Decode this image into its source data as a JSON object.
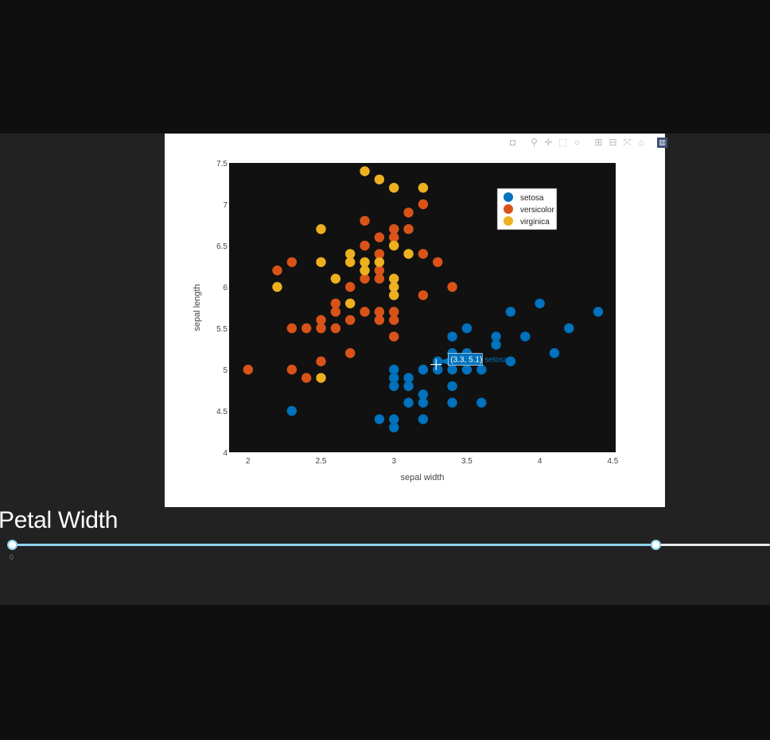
{
  "chart_data": {
    "type": "scatter",
    "title": "",
    "xlabel": "sepal width",
    "ylabel": "sepal length",
    "xlim": [
      1.87,
      4.52
    ],
    "ylim": [
      4.0,
      7.5
    ],
    "xticks": [
      "2",
      "2.5",
      "3",
      "3.5",
      "4",
      "4.5"
    ],
    "yticks": [
      "4",
      "4.5",
      "5",
      "5.5",
      "6",
      "6.5",
      "7",
      "7.5"
    ],
    "grid": false,
    "legend_position": "top-right",
    "plot_background": "#111111",
    "series": [
      {
        "name": "setosa",
        "color": "#0072bd",
        "points": [
          [
            3.0,
            5.0
          ],
          [
            3.0,
            4.9
          ],
          [
            3.0,
            4.8
          ],
          [
            3.0,
            4.4
          ],
          [
            3.0,
            4.3
          ],
          [
            2.9,
            4.4
          ],
          [
            3.1,
            4.9
          ],
          [
            3.1,
            4.8
          ],
          [
            3.1,
            4.6
          ],
          [
            3.2,
            5.0
          ],
          [
            3.2,
            4.7
          ],
          [
            3.2,
            4.6
          ],
          [
            3.2,
            4.4
          ],
          [
            3.3,
            5.1
          ],
          [
            3.3,
            5.0
          ],
          [
            3.4,
            5.4
          ],
          [
            3.4,
            5.2
          ],
          [
            3.4,
            5.1
          ],
          [
            3.4,
            5.0
          ],
          [
            3.4,
            4.8
          ],
          [
            3.4,
            4.6
          ],
          [
            3.5,
            5.5
          ],
          [
            3.5,
            5.2
          ],
          [
            3.5,
            5.1
          ],
          [
            3.5,
            5.0
          ],
          [
            3.6,
            5.0
          ],
          [
            3.6,
            4.6
          ],
          [
            3.7,
            5.4
          ],
          [
            3.7,
            5.3
          ],
          [
            3.8,
            5.7
          ],
          [
            3.8,
            5.1
          ],
          [
            3.9,
            5.4
          ],
          [
            4.0,
            5.8
          ],
          [
            4.1,
            5.2
          ],
          [
            4.2,
            5.5
          ],
          [
            4.4,
            5.7
          ],
          [
            2.3,
            4.5
          ]
        ]
      },
      {
        "name": "versicolor",
        "color": "#d95319",
        "points": [
          [
            2.0,
            5.0
          ],
          [
            2.2,
            6.2
          ],
          [
            2.3,
            6.3
          ],
          [
            2.3,
            5.5
          ],
          [
            2.3,
            5.0
          ],
          [
            2.4,
            5.5
          ],
          [
            2.4,
            4.9
          ],
          [
            2.5,
            5.6
          ],
          [
            2.5,
            5.5
          ],
          [
            2.5,
            5.1
          ],
          [
            2.6,
            5.8
          ],
          [
            2.6,
            5.7
          ],
          [
            2.6,
            5.5
          ],
          [
            2.7,
            6.0
          ],
          [
            2.7,
            5.6
          ],
          [
            2.7,
            5.2
          ],
          [
            2.8,
            6.8
          ],
          [
            2.8,
            6.5
          ],
          [
            2.8,
            6.1
          ],
          [
            2.8,
            5.7
          ],
          [
            2.9,
            6.6
          ],
          [
            2.9,
            6.4
          ],
          [
            2.9,
            6.2
          ],
          [
            2.9,
            6.1
          ],
          [
            2.9,
            5.7
          ],
          [
            2.9,
            5.6
          ],
          [
            3.0,
            6.7
          ],
          [
            3.0,
            6.6
          ],
          [
            3.0,
            5.7
          ],
          [
            3.0,
            5.6
          ],
          [
            3.0,
            5.4
          ],
          [
            3.1,
            6.9
          ],
          [
            3.1,
            6.7
          ],
          [
            3.2,
            7.0
          ],
          [
            3.2,
            6.4
          ],
          [
            3.2,
            5.9
          ],
          [
            3.3,
            6.3
          ],
          [
            3.4,
            6.0
          ]
        ]
      },
      {
        "name": "virginica",
        "color": "#edb120",
        "points": [
          [
            2.2,
            6.0
          ],
          [
            2.5,
            6.7
          ],
          [
            2.5,
            6.3
          ],
          [
            2.5,
            4.9
          ],
          [
            2.6,
            6.1
          ],
          [
            2.7,
            6.4
          ],
          [
            2.7,
            6.3
          ],
          [
            2.7,
            5.8
          ],
          [
            2.8,
            7.4
          ],
          [
            2.8,
            6.3
          ],
          [
            2.8,
            6.2
          ],
          [
            2.9,
            7.3
          ],
          [
            2.9,
            6.3
          ],
          [
            3.0,
            7.2
          ],
          [
            3.0,
            6.5
          ],
          [
            3.0,
            6.1
          ],
          [
            3.0,
            6.0
          ],
          [
            3.0,
            5.9
          ],
          [
            3.1,
            6.4
          ],
          [
            3.2,
            7.2
          ]
        ]
      }
    ],
    "hover": {
      "point": [
        3.3,
        5.1
      ],
      "label": "(3.3, 5.1)",
      "series": "setosa"
    }
  },
  "modebar": {
    "icons": [
      "camera-icon",
      "zoom-icon",
      "pan-icon",
      "box-select-icon",
      "lasso-icon",
      "zoom-in-icon",
      "zoom-out-icon",
      "autoscale-icon",
      "reset-axes-icon",
      "plotly-logo-icon"
    ]
  },
  "slider": {
    "title": "Petal Width",
    "min_label": "0",
    "low_fraction": 0.0,
    "high_fraction": 0.849,
    "track_color": "#8fd3ef"
  }
}
